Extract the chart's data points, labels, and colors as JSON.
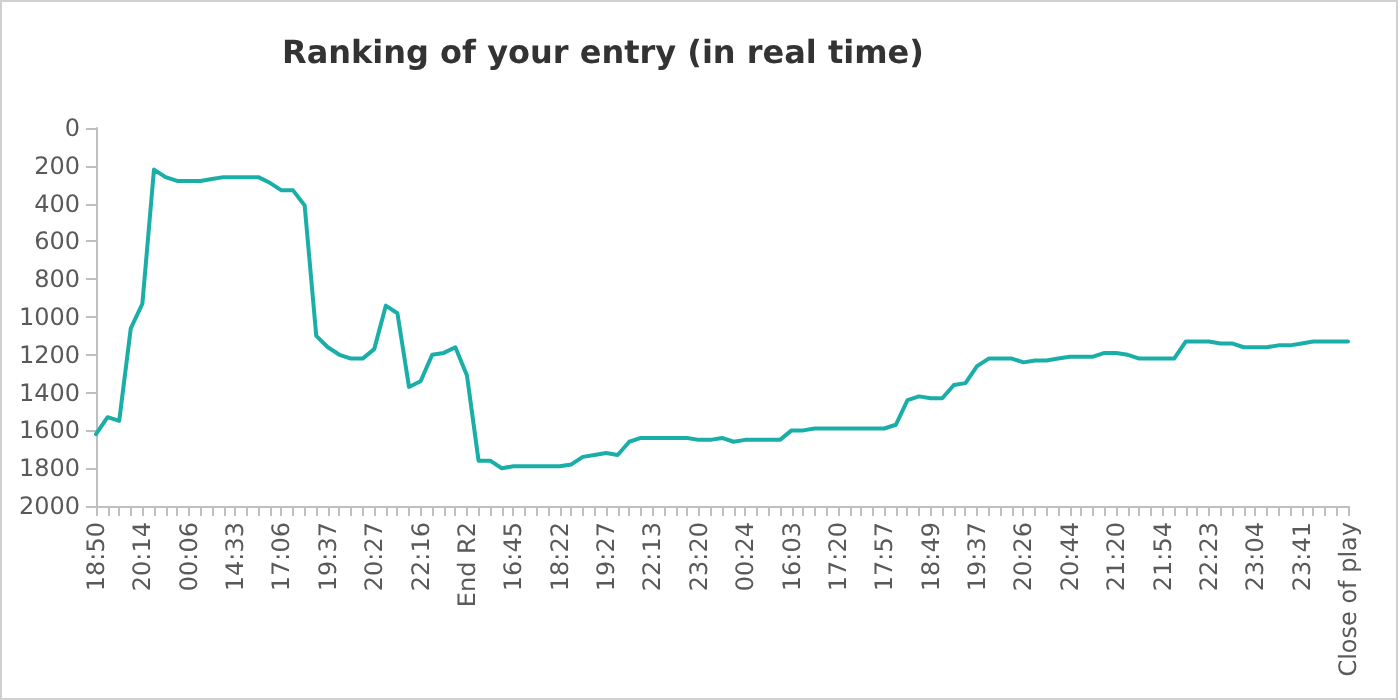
{
  "chart_data": {
    "type": "line",
    "title": "Ranking of your entry (in real time)",
    "categories": [
      "18:50",
      null,
      null,
      null,
      "20:14",
      null,
      null,
      null,
      "00:06",
      null,
      null,
      null,
      "14:33",
      null,
      null,
      null,
      "17:06",
      null,
      null,
      null,
      "19:37",
      null,
      null,
      null,
      "20:27",
      null,
      null,
      null,
      "22:16",
      null,
      null,
      null,
      "End R2",
      null,
      null,
      null,
      "16:45",
      null,
      null,
      null,
      "18:22",
      null,
      null,
      null,
      "19:27",
      null,
      null,
      null,
      "22:13",
      null,
      null,
      null,
      "23:20",
      null,
      null,
      null,
      "00:24",
      null,
      null,
      null,
      "16:03",
      null,
      null,
      null,
      "17:20",
      null,
      null,
      null,
      "17:57",
      null,
      null,
      null,
      "18:49",
      null,
      null,
      null,
      "19:37",
      null,
      null,
      null,
      "20:26",
      null,
      null,
      null,
      "20:44",
      null,
      null,
      null,
      "21:20",
      null,
      null,
      null,
      "21:54",
      null,
      null,
      null,
      "22:23",
      null,
      null,
      null,
      "23:04",
      null,
      null,
      null,
      "23:41",
      null,
      null,
      null,
      "Close of play"
    ],
    "series": [
      {
        "color": "#1aaea8",
        "values": [
          1620,
          1530,
          1550,
          1060,
          930,
          220,
          260,
          280,
          280,
          280,
          270,
          260,
          260,
          260,
          260,
          290,
          330,
          330,
          410,
          1100,
          1160,
          1200,
          1220,
          1220,
          1170,
          940,
          980,
          1370,
          1340,
          1200,
          1190,
          1160,
          1310,
          1760,
          1760,
          1800,
          1790,
          1790,
          1790,
          1790,
          1790,
          1780,
          1740,
          1730,
          1720,
          1730,
          1660,
          1640,
          1640,
          1640,
          1640,
          1640,
          1650,
          1650,
          1640,
          1660,
          1650,
          1650,
          1650,
          1650,
          1600,
          1600,
          1590,
          1590,
          1590,
          1590,
          1590,
          1590,
          1590,
          1570,
          1440,
          1420,
          1430,
          1430,
          1360,
          1350,
          1260,
          1220,
          1220,
          1220,
          1240,
          1230,
          1230,
          1220,
          1210,
          1210,
          1210,
          1190,
          1190,
          1200,
          1220,
          1220,
          1220,
          1220,
          1130,
          1130,
          1130,
          1140,
          1140,
          1160,
          1160,
          1160,
          1150,
          1150,
          1140,
          1130,
          1130,
          1130,
          1130
        ]
      }
    ],
    "ylim": [
      2000,
      0
    ],
    "yticks": [
      0,
      200,
      400,
      600,
      800,
      1000,
      1200,
      1400,
      1600,
      1800,
      2000
    ],
    "grid": false,
    "marker": "none",
    "line_style": "solid"
  }
}
